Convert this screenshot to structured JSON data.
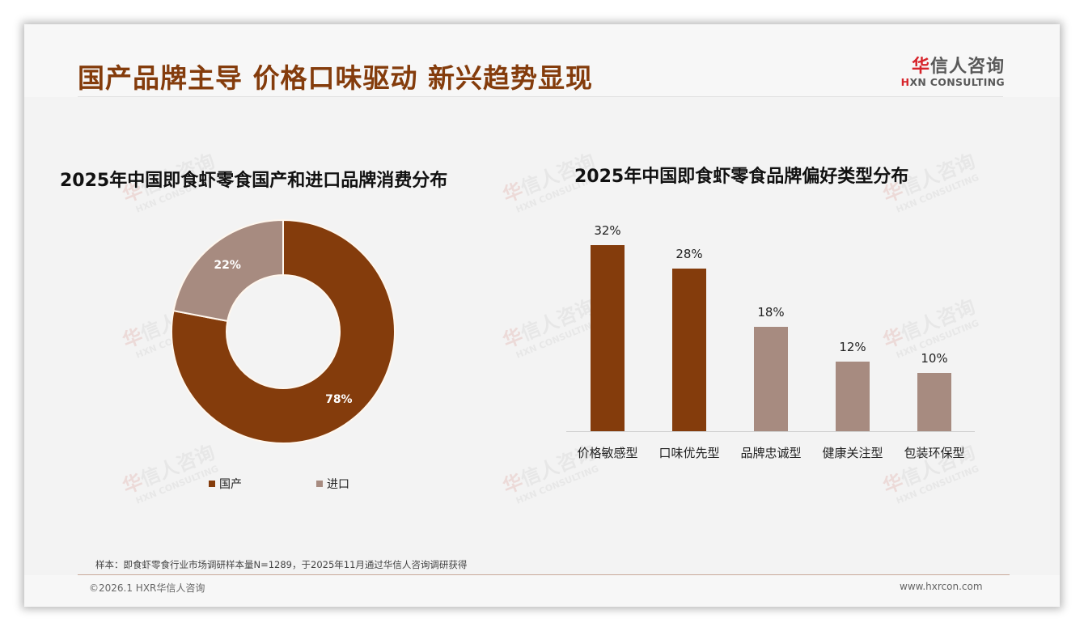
{
  "header": {
    "title": "国产品牌主导 价格口味驱动 新兴趋势显现",
    "logo_cn_highlight": "华",
    "logo_cn_rest": "信人咨询",
    "logo_en_highlight": "H",
    "logo_en_rest": "XN CONSULTING"
  },
  "watermark": {
    "cn_highlight": "华",
    "cn_rest": "信人咨询",
    "en": "HXN CONSULTING"
  },
  "colors": {
    "primary": "#843c0c",
    "secondary": "#a78b80",
    "title": "#843c0c",
    "logo_red": "#d7242b"
  },
  "chart_data": [
    {
      "type": "pie",
      "variant": "donut",
      "title": "2025年中国即食虾零食国产和进口品牌消费分布",
      "categories": [
        "国产",
        "进口"
      ],
      "values": [
        78,
        22
      ],
      "labels": [
        "78%",
        "22%"
      ],
      "colors": [
        "#843c0c",
        "#a78b80"
      ],
      "legend_position": "bottom"
    },
    {
      "type": "bar",
      "title": "2025年中国即食虾零食品牌偏好类型分布",
      "categories": [
        "价格敏感型",
        "口味优先型",
        "品牌忠诚型",
        "健康关注型",
        "包装环保型"
      ],
      "values": [
        32,
        28,
        18,
        12,
        10
      ],
      "labels": [
        "32%",
        "28%",
        "18%",
        "12%",
        "10%"
      ],
      "colors": [
        "#843c0c",
        "#843c0c",
        "#a78b80",
        "#a78b80",
        "#a78b80"
      ],
      "xlabel": "",
      "ylabel": "",
      "grid": false,
      "ylim": [
        0,
        35
      ]
    }
  ],
  "footer": {
    "note": "样本：即食虾零食行业市场调研样本量N=1289，于2025年11月通过华信人咨询调研获得",
    "copyright": "©2026.1 HXR华信人咨询",
    "website": "www.hxrcon.com"
  }
}
